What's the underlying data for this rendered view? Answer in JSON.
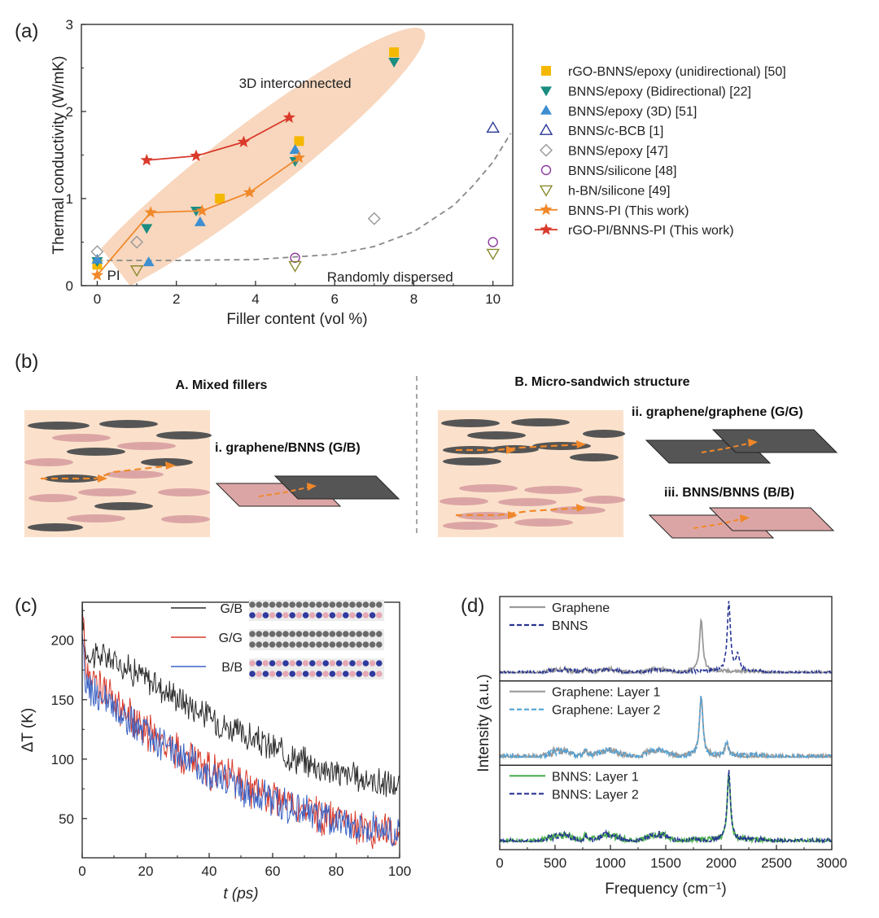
{
  "panels": {
    "a": "(a)",
    "b": "(b)",
    "c": "(c)",
    "d": "(d)"
  },
  "colors": {
    "orange": "#F0882A",
    "red": "#D93A2B",
    "yellow": "#F5B800",
    "teal": "#1A8C80",
    "blue": "#3D8FD1",
    "navy": "#283593",
    "gray": "#999999",
    "purple": "#8E3A9E",
    "olive": "#8A8A30",
    "ellipse": "#F8D7BE",
    "background_box": "#FBE1CB",
    "dark_flake": "#555555",
    "pink_flake": "#DCA5A5"
  },
  "chart_data": [
    {
      "id": "a",
      "type": "scatter",
      "xlabel": "Filler content (vol %)",
      "ylabel": "Thermal conductivity (W/mK)",
      "xlim": [
        -0.4,
        10.5
      ],
      "ylim": [
        0,
        3
      ],
      "xticks": [
        "0",
        "2",
        "4",
        "6",
        "8",
        "10"
      ],
      "yticks": [
        "0",
        "1",
        "2",
        "3"
      ],
      "legend_position": "right",
      "annotations": {
        "top": "3D interconnected",
        "bottom": "Randomly dispersed",
        "pi": "PI"
      },
      "series": [
        {
          "name": "rGO-BNNS/epoxy (unidirectional) [50]",
          "marker": "square",
          "color": "#F5B800",
          "points": [
            [
              0,
              0.24
            ],
            [
              3.1,
              1.0
            ],
            [
              5.1,
              1.66
            ],
            [
              7.5,
              2.68
            ]
          ]
        },
        {
          "name": "BNNS/epoxy (Bidirectional) [22]",
          "marker": "triangle-down",
          "color": "#1A8C80",
          "points": [
            [
              0,
              0.28
            ],
            [
              1.25,
              0.66
            ],
            [
              2.5,
              0.86
            ],
            [
              5.0,
              1.43
            ],
            [
              7.5,
              2.57
            ]
          ]
        },
        {
          "name": "BNNS/epoxy (3D) [51]",
          "marker": "triangle-up",
          "color": "#3D8FD1",
          "points": [
            [
              0,
              0.3
            ],
            [
              1.3,
              0.27
            ],
            [
              2.6,
              0.73
            ],
            [
              5.0,
              1.56
            ]
          ]
        },
        {
          "name": "BNNS/c-BCB [1]",
          "marker": "triangle-up-open",
          "color": "#283593",
          "points": [
            [
              10,
              1.81
            ]
          ]
        },
        {
          "name": "BNNS/epoxy [47]",
          "marker": "diamond-open",
          "color": "#999999",
          "points": [
            [
              0,
              0.39
            ],
            [
              1.0,
              0.5
            ],
            [
              7.0,
              0.77
            ]
          ]
        },
        {
          "name": "BNNS/silicone [48]",
          "marker": "circle-open",
          "color": "#8E3A9E",
          "points": [
            [
              5.0,
              0.32
            ],
            [
              10,
              0.5
            ]
          ]
        },
        {
          "name": "h-BN/silicone [49]",
          "marker": "triangle-down-open",
          "color": "#8A8A30",
          "points": [
            [
              1.0,
              0.18
            ],
            [
              5.0,
              0.23
            ],
            [
              10,
              0.37
            ]
          ]
        },
        {
          "name": "BNNS-PI (This work)",
          "marker": "star-line",
          "color": "#F0882A",
          "points": [
            [
              0,
              0.12
            ],
            [
              1.35,
              0.84
            ],
            [
              2.65,
              0.86
            ],
            [
              3.85,
              1.07
            ],
            [
              5.1,
              1.47
            ]
          ]
        },
        {
          "name": "rGO-PI/BNNS-PI (This work)",
          "marker": "star-line",
          "color": "#D93A2B",
          "points": [
            [
              1.25,
              1.44
            ],
            [
              2.5,
              1.49
            ],
            [
              3.7,
              1.65
            ],
            [
              4.85,
              1.93
            ]
          ]
        }
      ],
      "dashed_trend": [
        [
          0,
          0.29
        ],
        [
          2,
          0.29
        ],
        [
          4,
          0.3
        ],
        [
          6,
          0.36
        ],
        [
          7,
          0.45
        ],
        [
          8,
          0.62
        ],
        [
          9,
          0.92
        ],
        [
          9.5,
          1.15
        ],
        [
          10,
          1.42
        ],
        [
          10.45,
          1.75
        ]
      ]
    },
    {
      "id": "c",
      "type": "line",
      "xlabel": "t (ps)",
      "ylabel": "ΔT (K)",
      "xlim": [
        0,
        100
      ],
      "ylim": [
        17,
        232
      ],
      "xticks": [
        "0",
        "20",
        "40",
        "60",
        "80",
        "100"
      ],
      "yticks": [
        "50",
        "100",
        "150",
        "200"
      ],
      "series": [
        {
          "name": "G/B",
          "color": "#2b2b2b",
          "x": [
            0,
            1,
            3,
            6,
            10,
            15,
            20,
            30,
            40,
            50,
            60,
            70,
            80,
            90,
            100
          ],
          "y": [
            228,
            190,
            188,
            187,
            183,
            176,
            168,
            152,
            136,
            121,
            109,
            98,
            89,
            82,
            77
          ]
        },
        {
          "name": "G/G",
          "color": "#D93A2B",
          "x": [
            0,
            1,
            3,
            6,
            10,
            15,
            20,
            30,
            40,
            50,
            60,
            70,
            80,
            90,
            100
          ],
          "y": [
            228,
            182,
            170,
            160,
            148,
            136,
            124,
            106,
            91,
            79,
            68,
            57,
            48,
            42,
            38
          ]
        },
        {
          "name": "B/B",
          "color": "#3B63C4",
          "x": [
            0,
            1,
            3,
            6,
            10,
            15,
            20,
            30,
            40,
            50,
            60,
            70,
            80,
            90,
            100
          ],
          "y": [
            195,
            165,
            158,
            150,
            140,
            130,
            121,
            104,
            88,
            76,
            65,
            56,
            48,
            42,
            38
          ]
        }
      ]
    },
    {
      "id": "d",
      "type": "line",
      "xlabel": "Frequency (cm⁻¹)",
      "ylabel": "Intensity (a.u.)",
      "xlim": [
        0,
        3000
      ],
      "xticks": [
        "0",
        "500",
        "1000",
        "1500",
        "2000",
        "2500",
        "3000"
      ],
      "subpanels": [
        {
          "legend": [
            {
              "name": "Graphene",
              "color": "#9a9a9a",
              "style": "solid"
            },
            {
              "name": "BNNS",
              "color": "#283593",
              "style": "dash"
            }
          ],
          "peaks": [
            {
              "series": "Graphene",
              "pos": [
                1820
              ],
              "height": [
                0.75
              ]
            },
            {
              "series": "BNNS",
              "pos": [
                2070,
                2150
              ],
              "height": [
                1.0,
                0.22
              ]
            }
          ]
        },
        {
          "legend": [
            {
              "name": "Graphene: Layer 1",
              "color": "#9a9a9a",
              "style": "solid"
            },
            {
              "name": "Graphene: Layer 2",
              "color": "#4FA3D9",
              "style": "dash"
            }
          ],
          "peaks": [
            {
              "series": "Graphene: Layer 1",
              "pos": [
                1820,
                2050
              ],
              "height": [
                0.85,
                0.2
              ]
            }
          ]
        },
        {
          "legend": [
            {
              "name": "BNNS: Layer 1",
              "color": "#4CAF50",
              "style": "solid"
            },
            {
              "name": "BNNS: Layer 2",
              "color": "#283593",
              "style": "dash"
            }
          ],
          "peaks": [
            {
              "series": "BNNS: Layer 1",
              "pos": [
                2070
              ],
              "height": [
                1.0
              ]
            }
          ]
        }
      ]
    }
  ],
  "schematic": {
    "left_title": "A. Mixed fillers",
    "right_title": "B. Micro-sandwich structure",
    "gb_label": "i. graphene/BNNS (G/B)",
    "gg_label": "ii. graphene/graphene (G/G)",
    "bb_label": "iii. BNNS/BNNS (B/B)"
  }
}
